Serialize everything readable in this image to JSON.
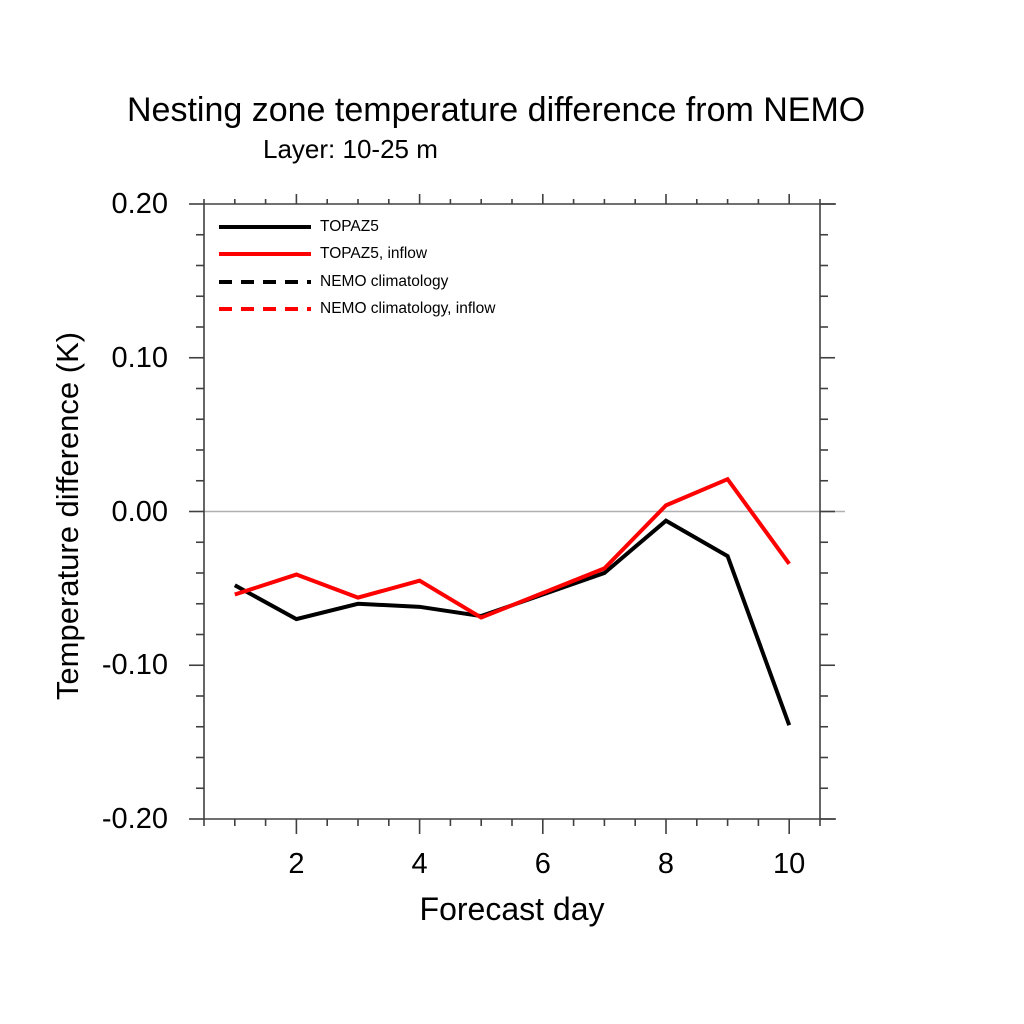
{
  "chart_data": {
    "type": "line",
    "title": "Nesting zone temperature difference from NEMO",
    "subtitle": "Layer: 10-25 m",
    "xlabel": "Forecast day",
    "ylabel": "Temperature difference (K)",
    "x": [
      1,
      2,
      3,
      4,
      5,
      6,
      7,
      8,
      9,
      10
    ],
    "series": [
      {
        "name": "TOPAZ5",
        "color": "#000000",
        "style": "solid",
        "values": [
          -0.048,
          -0.07,
          -0.06,
          -0.062,
          -0.068,
          -0.054,
          -0.04,
          -0.006,
          -0.029,
          -0.139
        ]
      },
      {
        "name": "TOPAZ5, inflow",
        "color": "#ff0000",
        "style": "solid",
        "values": [
          -0.054,
          -0.041,
          -0.056,
          -0.045,
          -0.069,
          -0.053,
          -0.037,
          0.004,
          0.021,
          -0.034
        ]
      },
      {
        "name": "NEMO climatology",
        "color": "#000000",
        "style": "dashed",
        "values": []
      },
      {
        "name": "NEMO climatology, inflow",
        "color": "#ff0000",
        "style": "dashed",
        "values": []
      }
    ],
    "xlim": [
      0.5,
      10.5
    ],
    "ylim": [
      -0.2,
      0.2
    ],
    "x_ticks": {
      "major_values": [
        2,
        4,
        6,
        8,
        10
      ],
      "major_labels": [
        "2",
        "4",
        "6",
        "8",
        "10"
      ],
      "minor_step": 0.5
    },
    "y_ticks": {
      "major_values": [
        0.2,
        0.1,
        0.0,
        -0.1,
        -0.2
      ],
      "major_labels": [
        "0.20",
        "0.10",
        "0.00",
        "-0.10",
        "-0.20"
      ],
      "minor_step": 0.02
    },
    "zero_line": true,
    "zero_line_color": "#b0b0b0",
    "axis_color": "#404040",
    "legend_position": "top-left",
    "grid": false
  }
}
